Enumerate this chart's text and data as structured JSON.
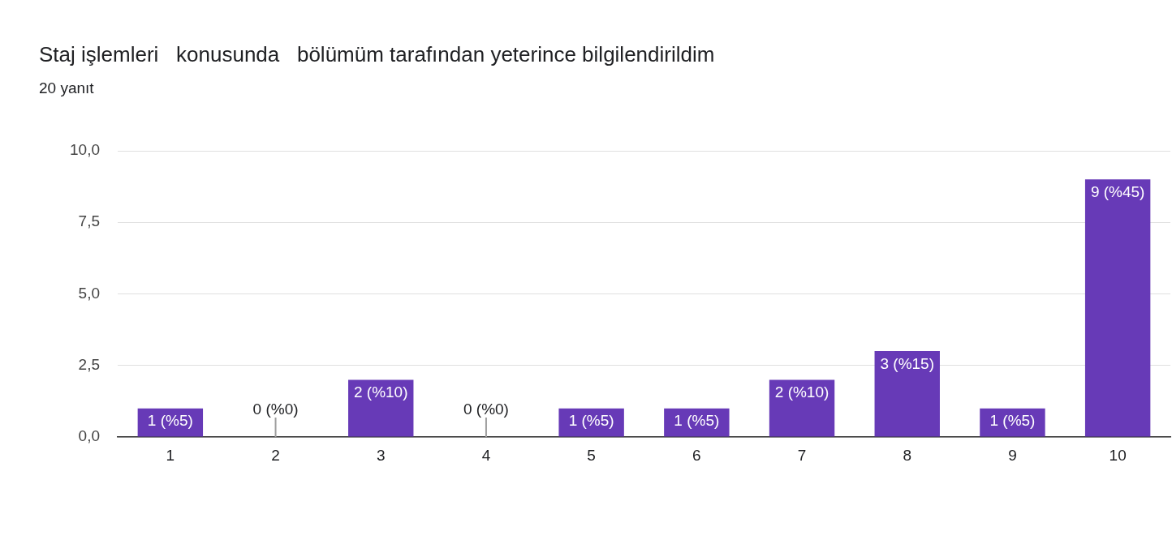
{
  "chart_data": {
    "type": "bar",
    "title": "Staj işlemleri   konusunda   bölümüm tarafından yeterince bilgilendirildim",
    "subtitle": "20 yanıt",
    "categories": [
      "1",
      "2",
      "3",
      "4",
      "5",
      "6",
      "7",
      "8",
      "9",
      "10"
    ],
    "values": [
      1,
      0,
      2,
      0,
      1,
      1,
      2,
      3,
      1,
      9
    ],
    "value_labels": [
      "1 (%5)",
      "0 (%0)",
      "2 (%10)",
      "0 (%0)",
      "1 (%5)",
      "1 (%5)",
      "2 (%10)",
      "3 (%15)",
      "1 (%5)",
      "9 (%45)"
    ],
    "color": "#673ab7",
    "ylim": [
      0,
      10
    ],
    "yticks": [
      {
        "value": 0,
        "label": "0,0"
      },
      {
        "value": 2.5,
        "label": "2,5"
      },
      {
        "value": 5,
        "label": "5,0"
      },
      {
        "value": 7.5,
        "label": "7,5"
      },
      {
        "value": 10,
        "label": "10,0"
      }
    ],
    "grid": "y"
  }
}
